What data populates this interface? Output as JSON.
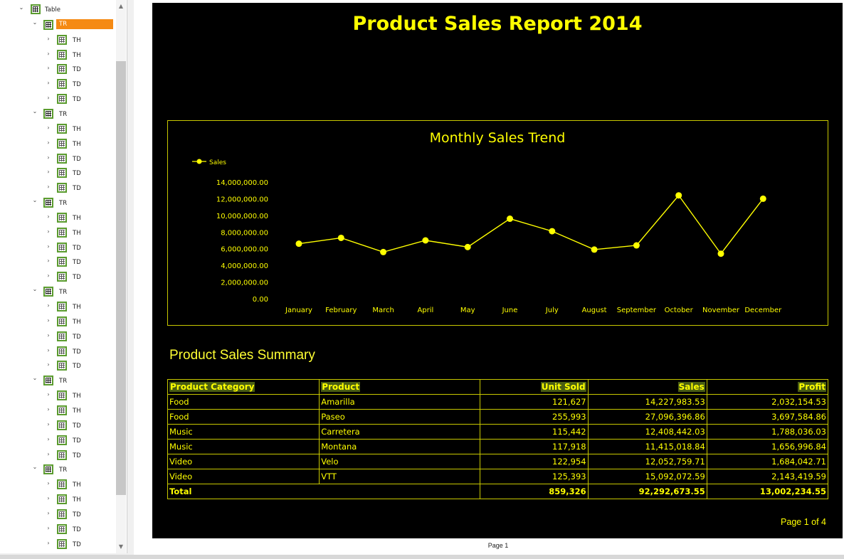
{
  "tree": {
    "root": {
      "label": "Table"
    },
    "rows": [
      {
        "label": "TR",
        "selected": true,
        "cells": [
          "TH",
          "TH",
          "TD",
          "TD",
          "TD"
        ]
      },
      {
        "label": "TR",
        "selected": false,
        "cells": [
          "TH",
          "TH",
          "TD",
          "TD",
          "TD"
        ]
      },
      {
        "label": "TR",
        "selected": false,
        "cells": [
          "TH",
          "TH",
          "TD",
          "TD",
          "TD"
        ]
      },
      {
        "label": "TR",
        "selected": false,
        "cells": [
          "TH",
          "TH",
          "TD",
          "TD",
          "TD"
        ]
      },
      {
        "label": "TR",
        "selected": false,
        "cells": [
          "TH",
          "TH",
          "TD",
          "TD",
          "TD"
        ]
      },
      {
        "label": "TR",
        "selected": false,
        "cells": [
          "TH",
          "TH",
          "TD",
          "TD",
          "TD"
        ]
      }
    ],
    "icons": {
      "table": "table-icon",
      "row": "table-row-icon",
      "cell": "table-cell-icon"
    },
    "selection_color": "#f58a13"
  },
  "report": {
    "title": "Product Sales Report 2014",
    "summary_title": "Product Sales Summary",
    "page_number": "Page 1 of 4",
    "colors": {
      "background": "#000000",
      "accent": "#ffff00",
      "header_fill": "#4a5e12"
    },
    "table": {
      "headers": [
        "Product Category",
        "Product",
        "Unit Sold",
        "Sales",
        "Profit"
      ],
      "rows": [
        [
          "Food",
          "Amarilla",
          "121,627",
          "14,227,983.53",
          "2,032,154.53"
        ],
        [
          "Food",
          "Paseo",
          "255,993",
          "27,096,396.86",
          "3,697,584.86"
        ],
        [
          "Music",
          "Carretera",
          "115,442",
          "12,408,442.03",
          "1,788,036.03"
        ],
        [
          "Music",
          "Montana",
          "117,918",
          "11,415,018.84",
          "1,656,996.84"
        ],
        [
          "Video",
          "Velo",
          "122,954",
          "12,052,759.71",
          "1,684,042.71"
        ],
        [
          "Video",
          "VTT",
          "125,393",
          "15,092,072.59",
          "2,143,419.59"
        ]
      ],
      "total": {
        "label": "Total",
        "units": "859,326",
        "sales": "92,292,673.55",
        "profit": "13,002,234.55"
      }
    }
  },
  "footer": {
    "page_label": "Page 1"
  },
  "chart_data": {
    "type": "line",
    "title": "Monthly Sales Trend",
    "categories": [
      "January",
      "February",
      "March",
      "April",
      "May",
      "June",
      "July",
      "August",
      "September",
      "October",
      "November",
      "December"
    ],
    "series": [
      {
        "name": "Sales",
        "values": [
          6600000,
          7300000,
          5600000,
          7000000,
          6200000,
          9600000,
          8100000,
          5900000,
          6400000,
          12400000,
          5400000,
          12000000
        ],
        "color": "#ffff00"
      }
    ],
    "y_ticks": [
      "0.00",
      "2,000,000.00",
      "4,000,000.00",
      "6,000,000.00",
      "8,000,000.00",
      "10,000,000.00",
      "12,000,000.00",
      "14,000,000.00"
    ],
    "ylim": [
      0,
      14000000
    ],
    "legend": "top-left",
    "grid": false
  }
}
